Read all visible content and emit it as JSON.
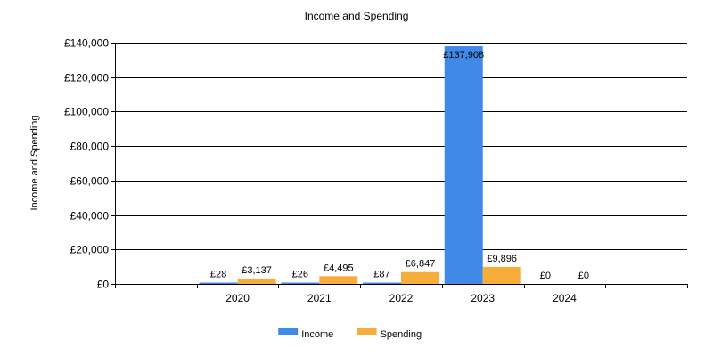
{
  "chart_data": {
    "type": "bar",
    "title": "Income and Spending",
    "xlabel": "",
    "ylabel": "Income and Spending",
    "categories": [
      "2020",
      "2021",
      "2022",
      "2023",
      "2024"
    ],
    "series": [
      {
        "name": "Income",
        "color": "#4089e6",
        "values": [
          28,
          26,
          87,
          137908,
          0
        ],
        "labels": [
          "£28",
          "£26",
          "£87",
          "£137,908",
          "£0"
        ]
      },
      {
        "name": "Spending",
        "color": "#f7ad3a",
        "values": [
          3137,
          4495,
          6847,
          9896,
          0
        ],
        "labels": [
          "£3,137",
          "£4,495",
          "£6,847",
          "£9,896",
          "£0"
        ]
      }
    ],
    "ylim": [
      0,
      140000
    ],
    "yticks": [
      {
        "value": 0,
        "label": "£0"
      },
      {
        "value": 20000,
        "label": "£20,000"
      },
      {
        "value": 40000,
        "label": "£40,000"
      },
      {
        "value": 60000,
        "label": "£60,000"
      },
      {
        "value": 80000,
        "label": "£80,000"
      },
      {
        "value": 100000,
        "label": "£100,000"
      },
      {
        "value": 120000,
        "label": "£120,000"
      },
      {
        "value": 140000,
        "label": "£140,000"
      }
    ],
    "grid": true,
    "legend_position": "bottom-center"
  }
}
